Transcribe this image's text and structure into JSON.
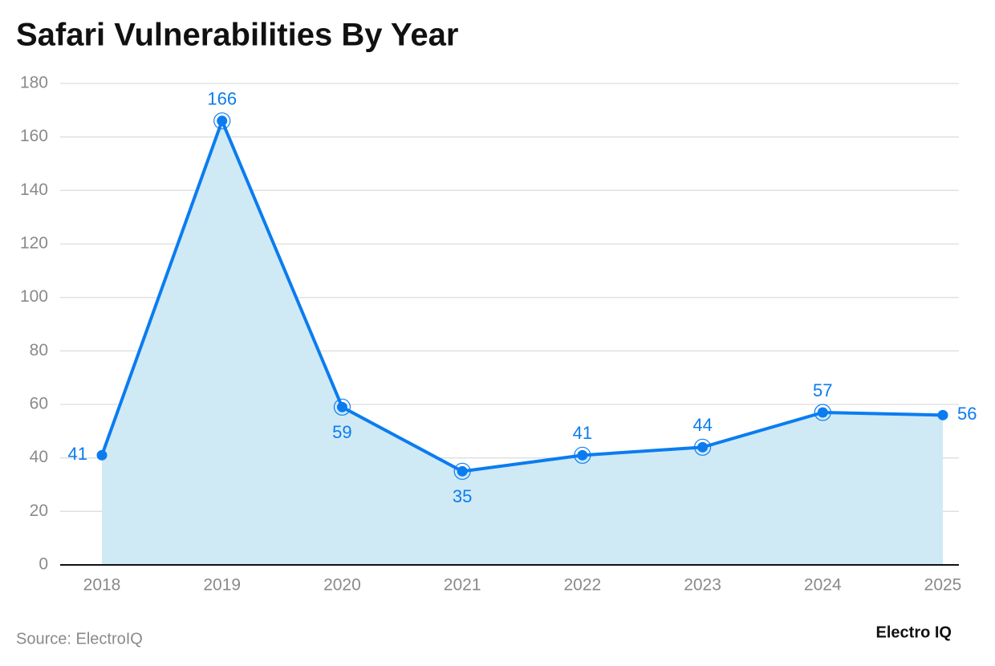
{
  "chart_data": {
    "type": "area-line",
    "title": "Safari Vulnerabilities By Year",
    "categories": [
      "2018",
      "2019",
      "2020",
      "2021",
      "2022",
      "2023",
      "2024",
      "2025"
    ],
    "values": [
      41,
      166,
      59,
      35,
      41,
      44,
      57,
      56
    ],
    "color": "#0b7cf0",
    "fill": "#cfeaf5",
    "ylim": [
      0,
      180
    ],
    "yticks": [
      0,
      20,
      40,
      60,
      80,
      100,
      120,
      140,
      160,
      180
    ],
    "grid": true,
    "source": "Source: ElectroIQ",
    "brand": "Electro IQ"
  }
}
